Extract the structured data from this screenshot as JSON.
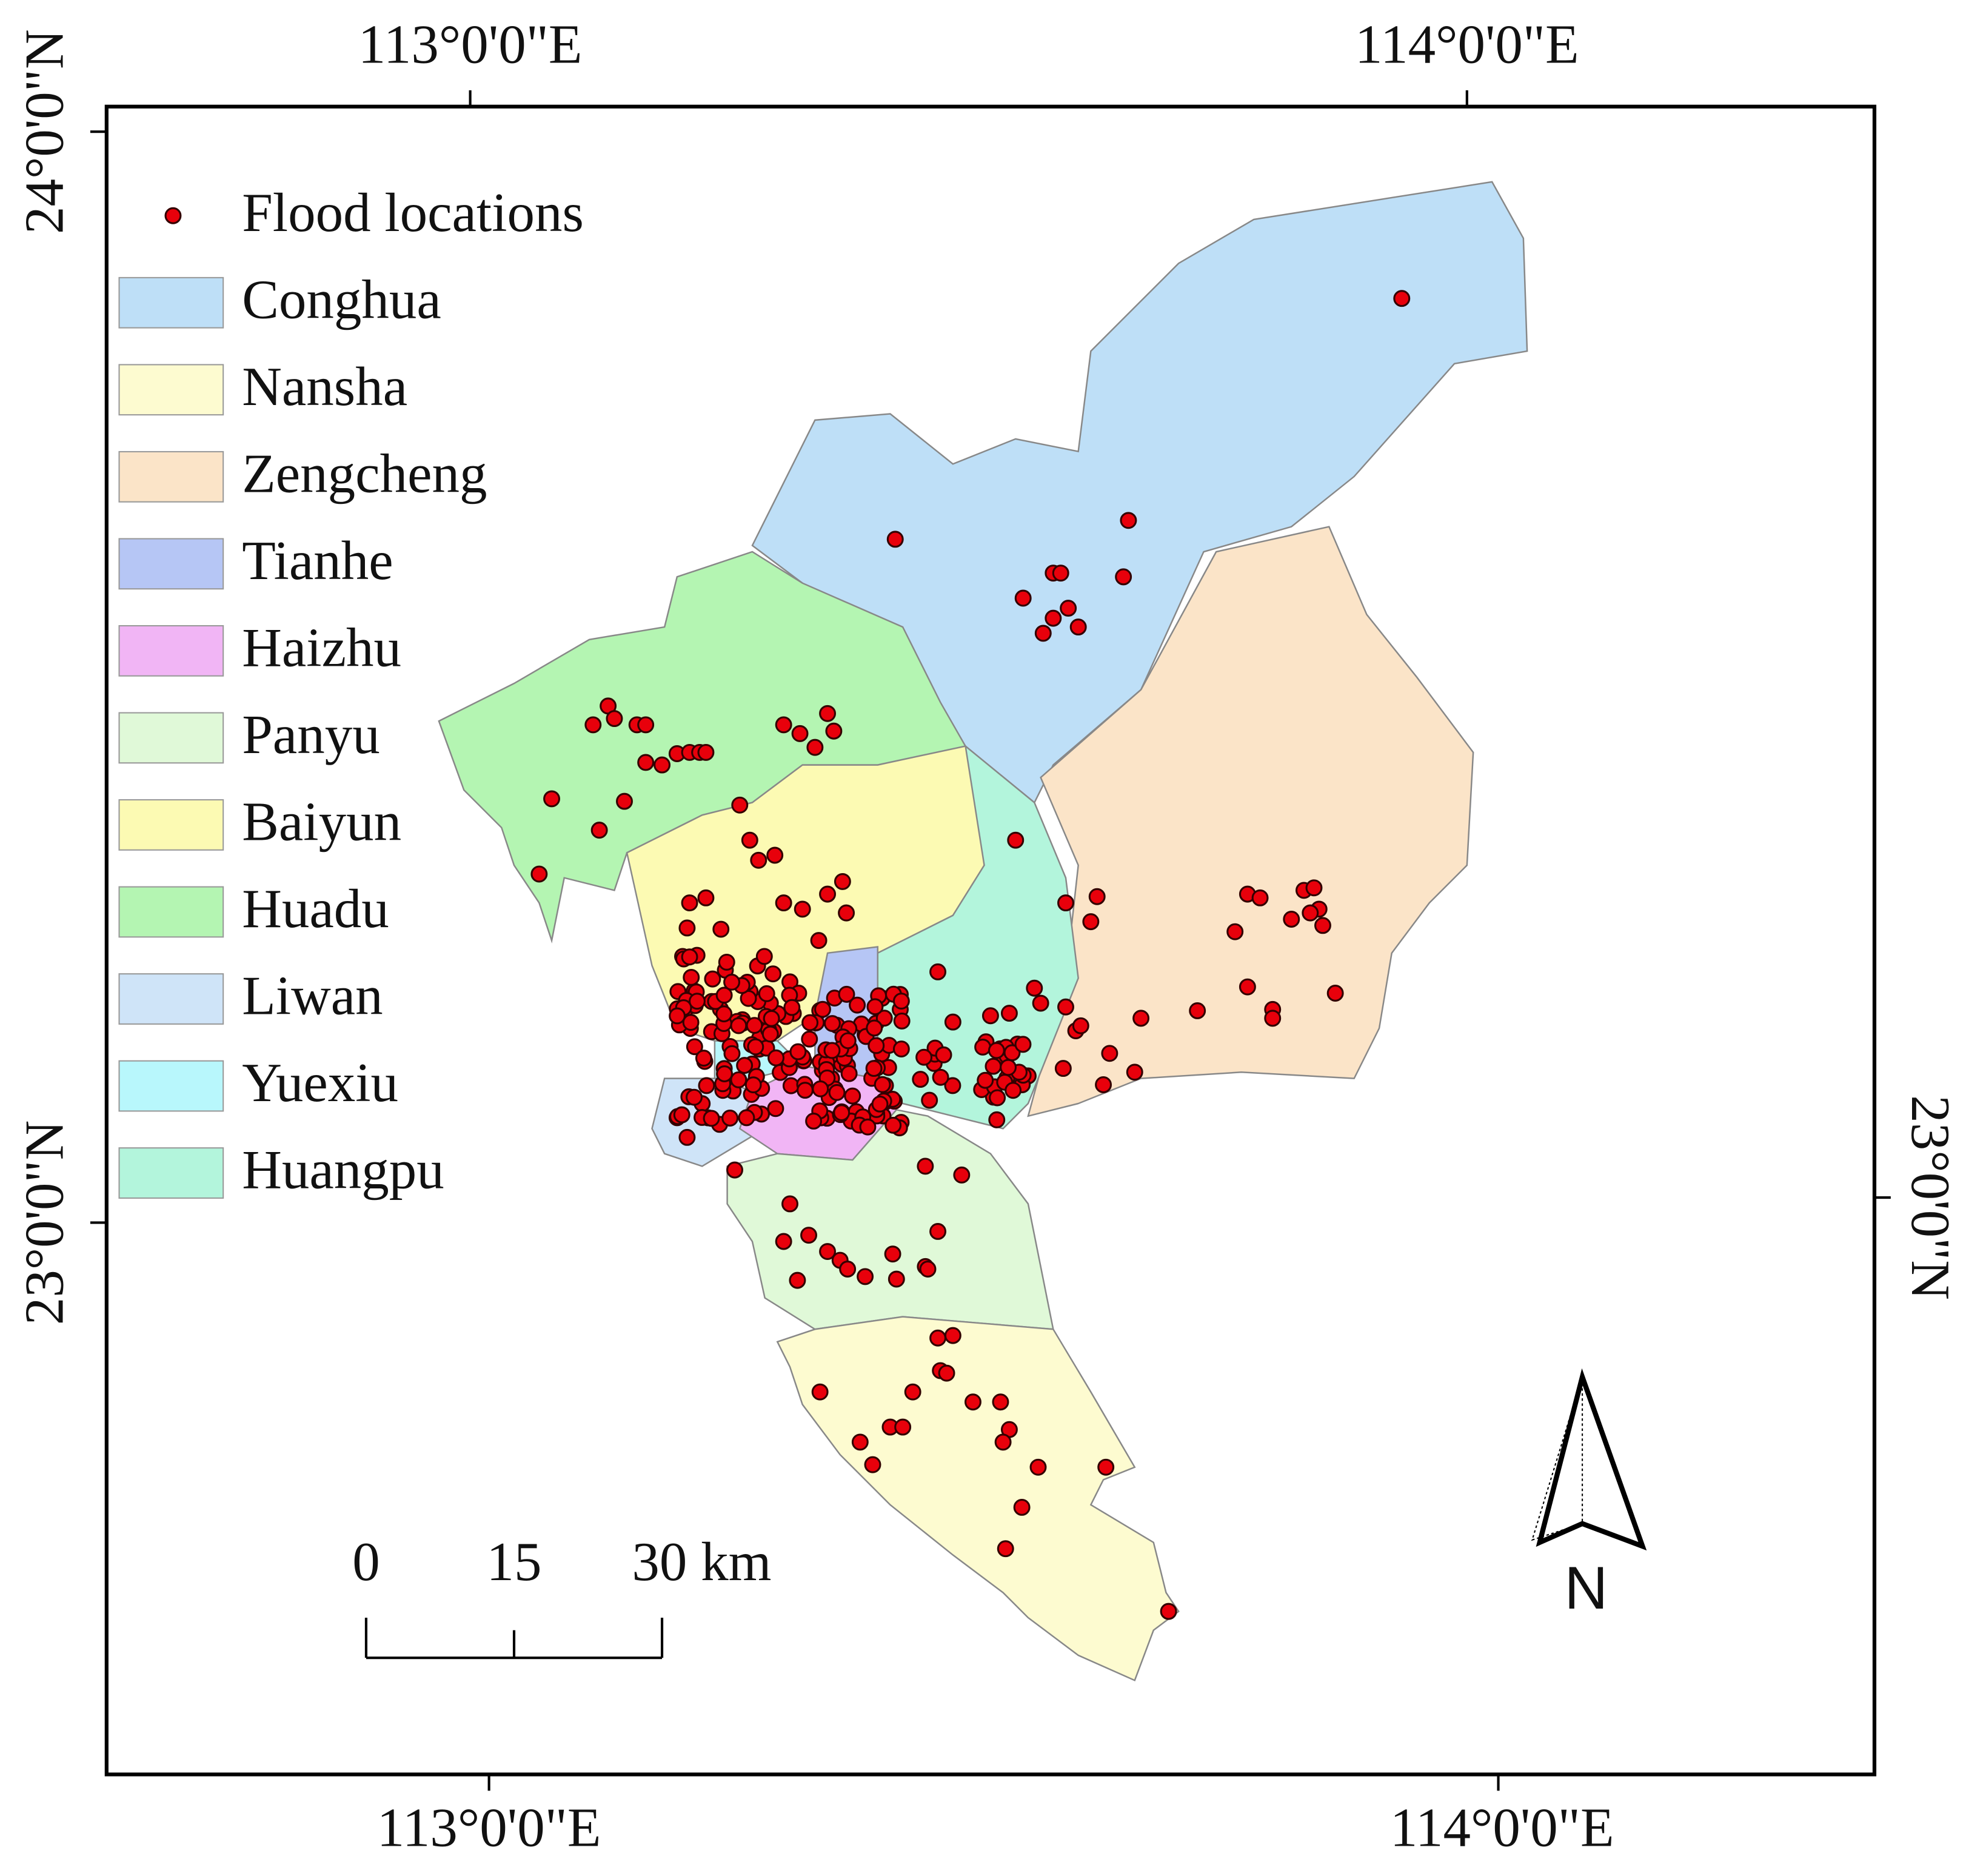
{
  "map": {
    "legend": [
      {
        "name": "Flood locations",
        "color": "#e8000b"
      },
      {
        "name": "Conghua",
        "color": "#bedff7"
      },
      {
        "name": "Nansha",
        "color": "#fdfbd0"
      },
      {
        "name": "Zengcheng",
        "color": "#fbe4c8"
      },
      {
        "name": "Tianhe",
        "color": "#b6c6f5"
      },
      {
        "name": "Haizhu",
        "color": "#f1b5f5"
      },
      {
        "name": "Panyu",
        "color": "#e0f9d8"
      },
      {
        "name": "Baiyun",
        "color": "#fcfab3"
      },
      {
        "name": "Huadu",
        "color": "#b4f5b2"
      },
      {
        "name": "Liwan",
        "color": "#cfe4f8"
      },
      {
        "name": "Yuexiu",
        "color": "#b8f7fc"
      },
      {
        "name": "Huangpu",
        "color": "#b3f5dc"
      }
    ],
    "top_labels": [
      "113°0'0\"E",
      "114°0'0\"E"
    ],
    "bottom_labels": [
      "113°0'0\"E",
      "114°0'0\"E"
    ],
    "left_labels": [
      "24°0'0\"N",
      "23°0'0\"N"
    ],
    "right_labels": [
      "23°0'0\"N"
    ],
    "scale_bar": {
      "ticks": [
        0,
        15,
        {
          "value": 30,
          "label": "30 km"
        }
      ]
    },
    "north": "N"
  }
}
